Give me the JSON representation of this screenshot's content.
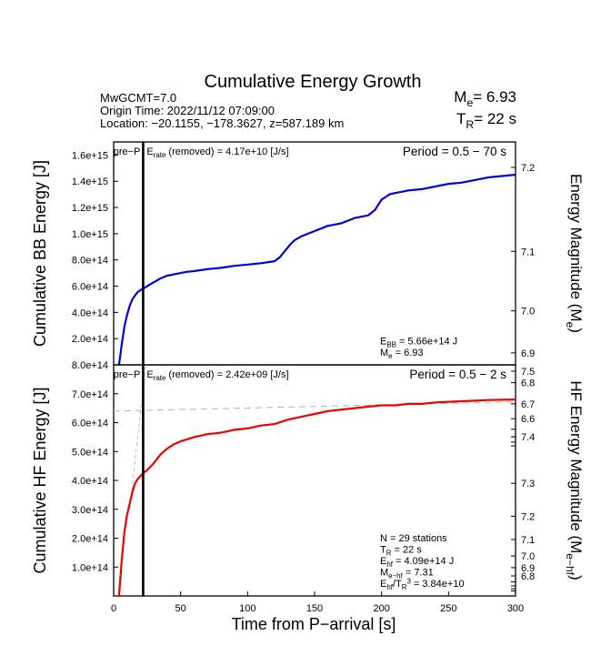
{
  "title": "Cumulative Energy Growth",
  "event": {
    "line1": "MwGCMT=7.0",
    "line2": "Origin Time: 2022/11/12 07:09:00",
    "line3": "Location: −20.1155, −178.3627, z=587.189 km"
  },
  "header_me": {
    "prefix": "M",
    "sub": "e",
    "text": "= 6.93"
  },
  "header_tr": {
    "prefix": "T",
    "sub": "R",
    "text": "= 22 s"
  },
  "xlabel": "Time from P−arrival [s]",
  "colors": {
    "bb": "#0000dd",
    "hf": "#ee0000",
    "guide": "#b0b0b0"
  },
  "chart_data": [
    {
      "type": "line",
      "id": "bb",
      "ylabel": "Cumulative BB Energy [J]",
      "ylabel_right": {
        "text": "Energy Magnitude (M",
        "sub": "e",
        "close": ")"
      },
      "period": "Period = 0.5 − 70 s",
      "pre_p": "pre−P",
      "erate": {
        "prefix": "E",
        "sub": "rate",
        "text": " (removed) = 4.17e+10 [J/s]"
      },
      "xlim": [
        0,
        300
      ],
      "ylim": [
        0,
        1700000000000000.0
      ],
      "left_ticks": [
        200000000000000.0,
        400000000000000.0,
        600000000000000.0,
        800000000000000.0,
        1000000000000000.0,
        1200000000000000.0,
        1400000000000000.0,
        1600000000000000.0
      ],
      "left_tick_labels": [
        "2.0e+14",
        "4.0e+14",
        "6.0e+14",
        "8.0e+14",
        "1.0e+15",
        "1.2e+15",
        "1.4e+15",
        "1.6e+15"
      ],
      "right_ticks": [
        6.2,
        6.3,
        6.4,
        6.5,
        6.6,
        6.7,
        6.8,
        6.9,
        7.0,
        7.1,
        7.2
      ],
      "right_tick_labels": [
        "",
        "",
        "",
        "",
        "6.6",
        "6.7",
        "6.8",
        "6.9",
        "7.0",
        "7.1",
        "7.2"
      ],
      "p_arrival": 22,
      "series": [
        {
          "x": [
            4,
            6,
            8,
            10,
            12,
            14,
            16,
            18,
            20,
            22,
            25,
            30,
            35,
            40,
            45,
            50,
            55,
            60,
            70,
            80,
            90,
            100,
            110,
            120,
            124,
            128,
            132,
            135,
            140,
            145,
            150,
            160,
            170,
            180,
            190,
            195,
            200,
            203,
            206,
            210,
            215,
            220,
            230,
            240,
            250,
            260,
            270,
            280,
            290,
            300
          ],
          "y": [
            0,
            150000000000000.0,
            290000000000000.0,
            380000000000000.0,
            450000000000000.0,
            500000000000000.0,
            530000000000000.0,
            555000000000000.0,
            570000000000000.0,
            580000000000000.0,
            600000000000000.0,
            630000000000000.0,
            660000000000000.0,
            680000000000000.0,
            690000000000000.0,
            700000000000000.0,
            710000000000000.0,
            715000000000000.0,
            730000000000000.0,
            740000000000000.0,
            755000000000000.0,
            765000000000000.0,
            775000000000000.0,
            790000000000000.0,
            820000000000000.0,
            870000000000000.0,
            920000000000000.0,
            950000000000000.0,
            980000000000000.0,
            1000000000000000.0,
            1020000000000000.0,
            1060000000000000.0,
            1080000000000000.0,
            1120000000000000.0,
            1140000000000000.0,
            1180000000000000.0,
            1260000000000000.0,
            1280000000000000.0,
            1300000000000000.0,
            1310000000000000.0,
            1320000000000000.0,
            1330000000000000.0,
            1340000000000000.0,
            1360000000000000.0,
            1380000000000000.0,
            1390000000000000.0,
            1410000000000000.0,
            1430000000000000.0,
            1440000000000000.0,
            1450000000000000.0
          ]
        }
      ],
      "annot": [
        {
          "prefix": "E",
          "sub": "BB",
          "text": " = 5.66e+14 J"
        },
        {
          "prefix": "M",
          "sub": "e",
          "text": " = 6.93"
        }
      ]
    },
    {
      "type": "line",
      "id": "hf",
      "ylabel": "Cumulative HF Energy [J]",
      "ylabel_right": {
        "text": "HF Energy Magnitude (M",
        "sub": "e−hf",
        "close": ")"
      },
      "period": "Period = 0.5 − 2 s",
      "pre_p": "pre−P",
      "erate": {
        "prefix": "E",
        "sub": "rate",
        "text": " (removed) = 2.42e+09 [J/s]"
      },
      "xlim": [
        0,
        300
      ],
      "ylim": [
        0,
        800000000000000.0
      ],
      "left_ticks": [
        100000000000000.0,
        200000000000000.0,
        300000000000000.0,
        400000000000000.0,
        500000000000000.0,
        600000000000000.0,
        700000000000000.0,
        800000000000000.0
      ],
      "left_tick_labels": [
        "1.0e+14",
        "2.0e+14",
        "3.0e+14",
        "4.0e+14",
        "5.0e+14",
        "6.0e+14",
        "7.0e+14",
        "8.0e+14"
      ],
      "right_ticks": [
        6.4,
        6.5,
        6.6,
        6.7,
        6.8,
        6.9,
        7.0,
        7.1,
        7.2,
        7.3,
        7.4,
        7.5
      ],
      "right_tick_labels": [
        "",
        "",
        "",
        "",
        "6.8",
        "6.9",
        "7.0",
        "7.1",
        "7.2",
        "7.3",
        "7.4",
        "7.5"
      ],
      "p_arrival": 22,
      "series": [
        {
          "x": [
            4,
            6,
            8,
            10,
            12,
            14,
            16,
            18,
            20,
            22,
            25,
            30,
            35,
            40,
            45,
            50,
            60,
            70,
            80,
            90,
            100,
            110,
            120,
            130,
            140,
            150,
            160,
            170,
            180,
            190,
            200,
            210,
            220,
            230,
            240,
            250,
            260,
            270,
            280,
            290,
            300
          ],
          "y": [
            0,
            120000000000000.0,
            220000000000000.0,
            280000000000000.0,
            320000000000000.0,
            360000000000000.0,
            390000000000000.0,
            405000000000000.0,
            415000000000000.0,
            425000000000000.0,
            435000000000000.0,
            460000000000000.0,
            490000000000000.0,
            510000000000000.0,
            525000000000000.0,
            535000000000000.0,
            550000000000000.0,
            560000000000000.0,
            565000000000000.0,
            575000000000000.0,
            580000000000000.0,
            590000000000000.0,
            595000000000000.0,
            610000000000000.0,
            620000000000000.0,
            630000000000000.0,
            640000000000000.0,
            645000000000000.0,
            650000000000000.0,
            655000000000000.0,
            660000000000000.0,
            660000000000000.0,
            665000000000000.0,
            665000000000000.0,
            670000000000000.0,
            672000000000000.0,
            674000000000000.0,
            676000000000000.0,
            678000000000000.0,
            679000000000000.0,
            680000000000000.0
          ]
        }
      ],
      "guide_dashed": {
        "x": [
          0,
          300
        ],
        "y": [
          640000000000000.0,
          672000000000000.0
        ]
      },
      "guide_steep": {
        "x": [
          12,
          24
        ],
        "y": [
          300000000000000.0,
          800000000000000.0
        ]
      },
      "annot": [
        {
          "prefix": "N = 29 stations",
          "sub": "",
          "text": ""
        },
        {
          "prefix": "T",
          "sub": "R",
          "text": " = 22  s"
        },
        {
          "prefix": "E",
          "sub": "hf",
          "text": " = 4.09e+14 J"
        },
        {
          "prefix": "M",
          "sub": "e−hf",
          "text": " = 7.31"
        },
        {
          "prefix": "E",
          "sub": "hf",
          "text": "/T",
          "sub2": "R",
          "sup": "3",
          "text2": " =  3.84e+10"
        }
      ]
    }
  ],
  "x_ticks": [
    0,
    50,
    100,
    150,
    200,
    250,
    300
  ],
  "x_tick_labels": [
    "0",
    "50",
    "100",
    "150",
    "200",
    "250",
    "300"
  ]
}
